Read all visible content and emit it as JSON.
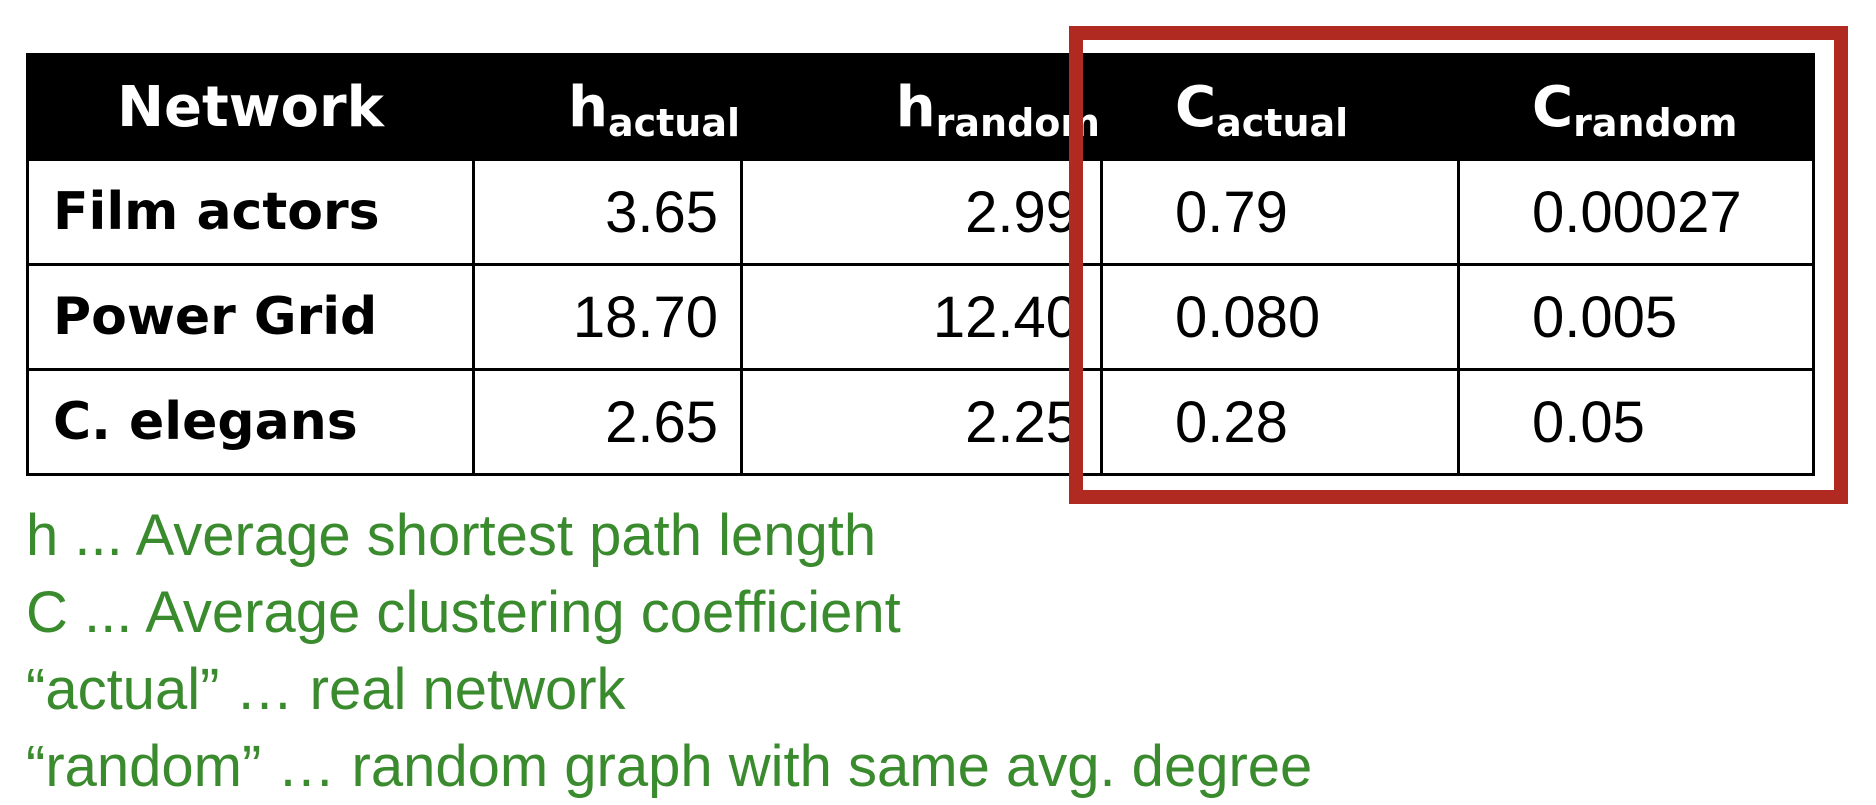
{
  "table": {
    "headers": [
      {
        "main": "Network",
        "sub": ""
      },
      {
        "main": "h",
        "sub": "actual"
      },
      {
        "main": "h",
        "sub": "random"
      },
      {
        "main": "C",
        "sub": "actual"
      },
      {
        "main": "C",
        "sub": "random"
      }
    ],
    "rows": [
      {
        "network": "Film actors",
        "h_actual": "3.65",
        "h_random": "2.99",
        "c_actual": "0.79",
        "c_random": "0.00027"
      },
      {
        "network": "Power Grid",
        "h_actual": "18.70",
        "h_random": "12.40",
        "c_actual": "0.080",
        "c_random": "0.005"
      },
      {
        "network": "C. elegans",
        "h_actual": "2.65",
        "h_random": "2.25",
        "c_actual": "0.28",
        "c_random": "0.05"
      }
    ]
  },
  "legend": [
    "h ... Average shortest path length",
    "C ... Average clustering coefficient",
    "“actual” … real network",
    "“random” … random graph with same avg. degree"
  ],
  "colors": {
    "legend_text": "#3a8a2e",
    "highlight_box": "#b02a22",
    "header_bg": "#000000"
  }
}
